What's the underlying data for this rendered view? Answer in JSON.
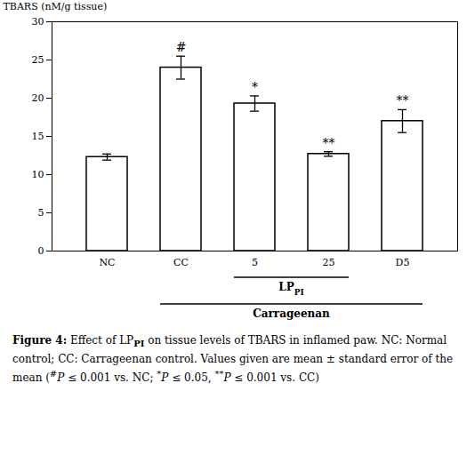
{
  "chart_data": {
    "type": "bar",
    "categories": [
      "NC",
      "CC",
      "5",
      "25",
      "D5"
    ],
    "values": [
      12.3,
      24.0,
      19.3,
      12.7,
      17.0
    ],
    "errors": [
      0.4,
      1.5,
      1.0,
      0.3,
      1.5
    ],
    "color": "#ffffff",
    "ylabel": "TBARS (nM/g tissue)",
    "ylim": [
      0,
      30
    ],
    "yticks": [
      0,
      5,
      10,
      15,
      20,
      25,
      30
    ],
    "significance_labels": [
      null,
      "#",
      "*",
      "**",
      "**"
    ],
    "brackets": [
      {
        "label": [
          {
            "text": "LP"
          },
          {
            "text": "PI",
            "style": [
              "sub"
            ]
          }
        ],
        "from": "5",
        "to": "25"
      },
      {
        "label": [
          {
            "text": "Carrageenan"
          }
        ],
        "from": "CC",
        "to": "D5"
      }
    ],
    "caption": [
      {
        "text": "Figure 4:",
        "style": [
          "bold"
        ]
      },
      {
        "text": " Effect of LP"
      },
      {
        "text": "PI",
        "style": [
          "sub",
          "bold"
        ]
      },
      {
        "text": " on tissue levels of TBARS in inflamed paw. NC: Normal control; CC: Carrageenan control. Values given are mean ± standard error of the mean ("
      },
      {
        "text": "#",
        "style": [
          "sup"
        ]
      },
      {
        "text": "P",
        "style": [
          "italic"
        ]
      },
      {
        "text": " ≤ 0.001 vs. NC; "
      },
      {
        "text": "*",
        "style": [
          "sup"
        ]
      },
      {
        "text": "P",
        "style": [
          "italic"
        ]
      },
      {
        "text": " ≤ 0.05, "
      },
      {
        "text": "**",
        "style": [
          "sup"
        ]
      },
      {
        "text": "P",
        "style": [
          "italic"
        ]
      },
      {
        "text": " ≤ 0.001 vs. CC)"
      }
    ]
  }
}
